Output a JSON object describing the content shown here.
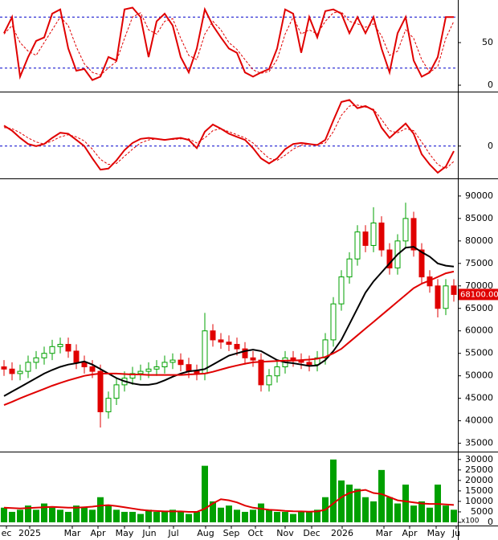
{
  "chart_data": [
    {
      "type": "line",
      "ylim": [
        0,
        100
      ],
      "yticks": [
        0,
        50
      ],
      "levels": [
        20,
        80
      ],
      "level_color": "#0000cc",
      "series": [
        {
          "color": "#e00000",
          "values": [
            61,
            80,
            10,
            33,
            52,
            56,
            84,
            89,
            43,
            17,
            19,
            6,
            10,
            33,
            29,
            89,
            91,
            80,
            33,
            75,
            84,
            70,
            33,
            15,
            43,
            89,
            70,
            56,
            43,
            38,
            15,
            10,
            15,
            19,
            43,
            89,
            84,
            38,
            80,
            56,
            87,
            89,
            84,
            61,
            80,
            61,
            80,
            43,
            15,
            61,
            80,
            29,
            10,
            15,
            33,
            80,
            80
          ]
        },
        {
          "color": "#e00000",
          "dash": true,
          "values": [
            60,
            70,
            50,
            40,
            35,
            50,
            65,
            80,
            70,
            45,
            25,
            15,
            12,
            20,
            28,
            55,
            80,
            85,
            65,
            60,
            75,
            78,
            55,
            35,
            30,
            60,
            75,
            65,
            50,
            42,
            30,
            18,
            14,
            16,
            30,
            60,
            80,
            60,
            65,
            60,
            75,
            85,
            86,
            75,
            72,
            68,
            72,
            58,
            35,
            40,
            65,
            55,
            30,
            15,
            22,
            55,
            75
          ]
        }
      ]
    },
    {
      "type": "line",
      "ylim": [
        -3000,
        5000
      ],
      "yticks": [
        0
      ],
      "levels": [
        0
      ],
      "level_color": "#0000cc",
      "series": [
        {
          "color": "#e00000",
          "values": [
            2000,
            1500,
            800,
            200,
            0,
            200,
            800,
            1300,
            1200,
            600,
            0,
            -1200,
            -2300,
            -2200,
            -1400,
            -400,
            300,
            700,
            800,
            700,
            600,
            700,
            800,
            600,
            -200,
            1400,
            2100,
            1700,
            1200,
            900,
            600,
            -200,
            -1200,
            -1700,
            -1200,
            -300,
            200,
            300,
            200,
            100,
            600,
            2500,
            4300,
            4500,
            3700,
            3900,
            3500,
            1800,
            800,
            1500,
            2200,
            1200,
            -800,
            -1800,
            -2600,
            -2000,
            -500
          ]
        },
        {
          "color": "#e00000",
          "dash": true,
          "values": [
            1800,
            1700,
            1300,
            800,
            400,
            200,
            500,
            900,
            1100,
            900,
            500,
            -300,
            -1300,
            -1800,
            -1700,
            -1000,
            -300,
            300,
            600,
            700,
            650,
            650,
            700,
            700,
            300,
            800,
            1500,
            1700,
            1400,
            1100,
            800,
            300,
            -500,
            -1200,
            -1400,
            -900,
            -300,
            100,
            200,
            150,
            300,
            1400,
            3000,
            3900,
            4000,
            3800,
            3600,
            2600,
            1500,
            1300,
            1700,
            1500,
            400,
            -800,
            -1800,
            -2200,
            -1500
          ]
        }
      ]
    },
    {
      "type": "candlestick",
      "ylim": [
        33500,
        93200
      ],
      "yticks": [
        35000,
        40000,
        45000,
        50000,
        55000,
        60000,
        65000,
        70000,
        75000,
        80000,
        85000,
        90000
      ],
      "up_color": "#00a000",
      "down_color": "#e00000",
      "open": [
        52000,
        51500,
        50500,
        51000,
        53000,
        54000,
        55000,
        56500,
        57000,
        55500,
        53000,
        52000,
        51000,
        42000,
        45000,
        48000,
        49500,
        50500,
        51000,
        51500,
        52000,
        53000,
        53500,
        52500,
        51000,
        50500,
        60000,
        58000,
        57500,
        57000,
        56000,
        54000,
        53500,
        48000,
        50000,
        52000,
        54000,
        53500,
        53000,
        52500,
        54000,
        58000,
        66000,
        72000,
        76000,
        82000,
        79000,
        84000,
        78000,
        74000,
        80000,
        85000,
        78000,
        72000,
        70000,
        65000,
        70000
      ],
      "high": [
        53500,
        53000,
        52500,
        54500,
        55500,
        56500,
        58000,
        58500,
        58500,
        57000,
        54500,
        53500,
        52500,
        46500,
        49500,
        51000,
        52000,
        52500,
        53000,
        53500,
        54500,
        55000,
        55000,
        54000,
        52500,
        64000,
        61500,
        59500,
        59000,
        58500,
        57500,
        55500,
        55000,
        51500,
        53500,
        55500,
        55500,
        55000,
        54500,
        55500,
        59500,
        67500,
        73500,
        77500,
        83500,
        83500,
        87500,
        85500,
        79500,
        81500,
        88500,
        86500,
        79500,
        73500,
        71500,
        71500,
        71500
      ],
      "low": [
        50000,
        49000,
        49000,
        49500,
        51500,
        52500,
        53500,
        55000,
        54000,
        51500,
        50500,
        49500,
        38500,
        40500,
        43500,
        46500,
        48000,
        49000,
        49500,
        50000,
        50500,
        51500,
        51000,
        49500,
        49000,
        49000,
        56500,
        56000,
        55500,
        54500,
        52500,
        52000,
        46500,
        46500,
        48500,
        50500,
        52000,
        51500,
        51000,
        51000,
        52500,
        56500,
        64500,
        70500,
        74500,
        77500,
        77500,
        76500,
        72500,
        72500,
        78500,
        76500,
        70500,
        68500,
        63000,
        63500,
        66500
      ],
      "close": [
        51500,
        50500,
        51000,
        53000,
        54000,
        55000,
        56500,
        57000,
        55500,
        53000,
        52000,
        51000,
        42000,
        45000,
        48000,
        49500,
        50500,
        51000,
        51500,
        52000,
        53000,
        53500,
        52500,
        51000,
        50500,
        60000,
        58000,
        57500,
        57000,
        56000,
        54000,
        53500,
        48000,
        50000,
        52000,
        54000,
        53500,
        53000,
        52500,
        54000,
        58000,
        66000,
        72000,
        76000,
        82000,
        79000,
        84000,
        78000,
        74000,
        80000,
        85000,
        78000,
        72000,
        70000,
        65000,
        70000,
        68100
      ],
      "last_price_label": "68100.00",
      "series": [
        {
          "color": "#000000",
          "values": [
            45500,
            46500,
            47500,
            48500,
            49500,
            50500,
            51300,
            52000,
            52500,
            52800,
            53200,
            52500,
            51500,
            50500,
            49500,
            48800,
            48300,
            48000,
            48000,
            48300,
            49000,
            49800,
            50500,
            51000,
            51200,
            51500,
            52500,
            53500,
            54500,
            55000,
            55500,
            55800,
            55500,
            54500,
            53500,
            53000,
            52800,
            52500,
            52200,
            52300,
            53500,
            55500,
            58000,
            61500,
            65000,
            68500,
            71000,
            73000,
            75000,
            77000,
            78500,
            78700,
            77500,
            76500,
            75000,
            74500,
            74300
          ]
        },
        {
          "color": "#e00000",
          "values": [
            43500,
            44200,
            45000,
            45700,
            46400,
            47100,
            47800,
            48400,
            49000,
            49500,
            50000,
            50300,
            50500,
            50500,
            50500,
            50400,
            50300,
            50300,
            50200,
            50200,
            50200,
            50200,
            50200,
            50300,
            50400,
            50500,
            50900,
            51400,
            51900,
            52300,
            52700,
            53000,
            53100,
            53200,
            53300,
            53400,
            53400,
            53500,
            53600,
            53800,
            54200,
            55000,
            56000,
            57500,
            59000,
            60500,
            62000,
            63500,
            65000,
            66500,
            68000,
            69500,
            70500,
            71200,
            72000,
            72800,
            73200
          ]
        }
      ]
    },
    {
      "type": "bar",
      "ylim": [
        0,
        33000
      ],
      "yticks": [
        0,
        5000,
        10000,
        15000,
        20000,
        25000,
        30000
      ],
      "unit_label": "x100",
      "color": "#00a000",
      "values": [
        7000,
        5000,
        6000,
        8000,
        6000,
        9000,
        7000,
        6000,
        5000,
        8000,
        7000,
        6000,
        12000,
        8000,
        6000,
        5000,
        5000,
        4000,
        6000,
        5000,
        5000,
        6000,
        5000,
        4000,
        5000,
        27000,
        10000,
        7000,
        8000,
        6000,
        5000,
        6000,
        9000,
        6000,
        5000,
        5000,
        4000,
        5000,
        5000,
        6000,
        12000,
        30000,
        20000,
        18000,
        16000,
        12000,
        10000,
        25000,
        12000,
        9000,
        18000,
        8000,
        10000,
        7000,
        18000,
        8000,
        6000
      ],
      "series": [
        {
          "color": "#e00000",
          "values": [
            7000,
            6800,
            6600,
            6800,
            7000,
            7200,
            7400,
            7200,
            7000,
            7000,
            7200,
            7500,
            8000,
            8200,
            7800,
            7200,
            6600,
            6000,
            5600,
            5400,
            5200,
            5200,
            5200,
            5000,
            5000,
            6500,
            9000,
            11000,
            10500,
            9500,
            8000,
            7000,
            6500,
            6000,
            5800,
            5500,
            5300,
            5200,
            5100,
            5200,
            6000,
            9000,
            12000,
            14000,
            15000,
            15500,
            14000,
            13500,
            12000,
            10500,
            10000,
            9500,
            9000,
            8800,
            8800,
            8500,
            8300
          ]
        }
      ],
      "xlim": [
        0,
        57
      ],
      "xticks": [
        {
          "value": 0.8,
          "label": "ec"
        },
        {
          "value": 3.7,
          "label": "2025"
        },
        {
          "value": 9.0,
          "label": "Mar"
        },
        {
          "value": 12.2,
          "label": "Apr"
        },
        {
          "value": 15.5,
          "label": "May"
        },
        {
          "value": 18.6,
          "label": "Jun"
        },
        {
          "value": 21.6,
          "label": "Jul"
        },
        {
          "value": 25.6,
          "label": "Aug"
        },
        {
          "value": 28.8,
          "label": "Sep"
        },
        {
          "value": 31.8,
          "label": "Oct"
        },
        {
          "value": 35.5,
          "label": "Nov"
        },
        {
          "value": 38.8,
          "label": "Dec"
        },
        {
          "value": 42.6,
          "label": "2026"
        },
        {
          "value": 47.8,
          "label": "Mar"
        },
        {
          "value": 51.0,
          "label": "Apr"
        },
        {
          "value": 54.3,
          "label": "May"
        },
        {
          "value": 56.8,
          "label": "Ju"
        }
      ]
    }
  ]
}
